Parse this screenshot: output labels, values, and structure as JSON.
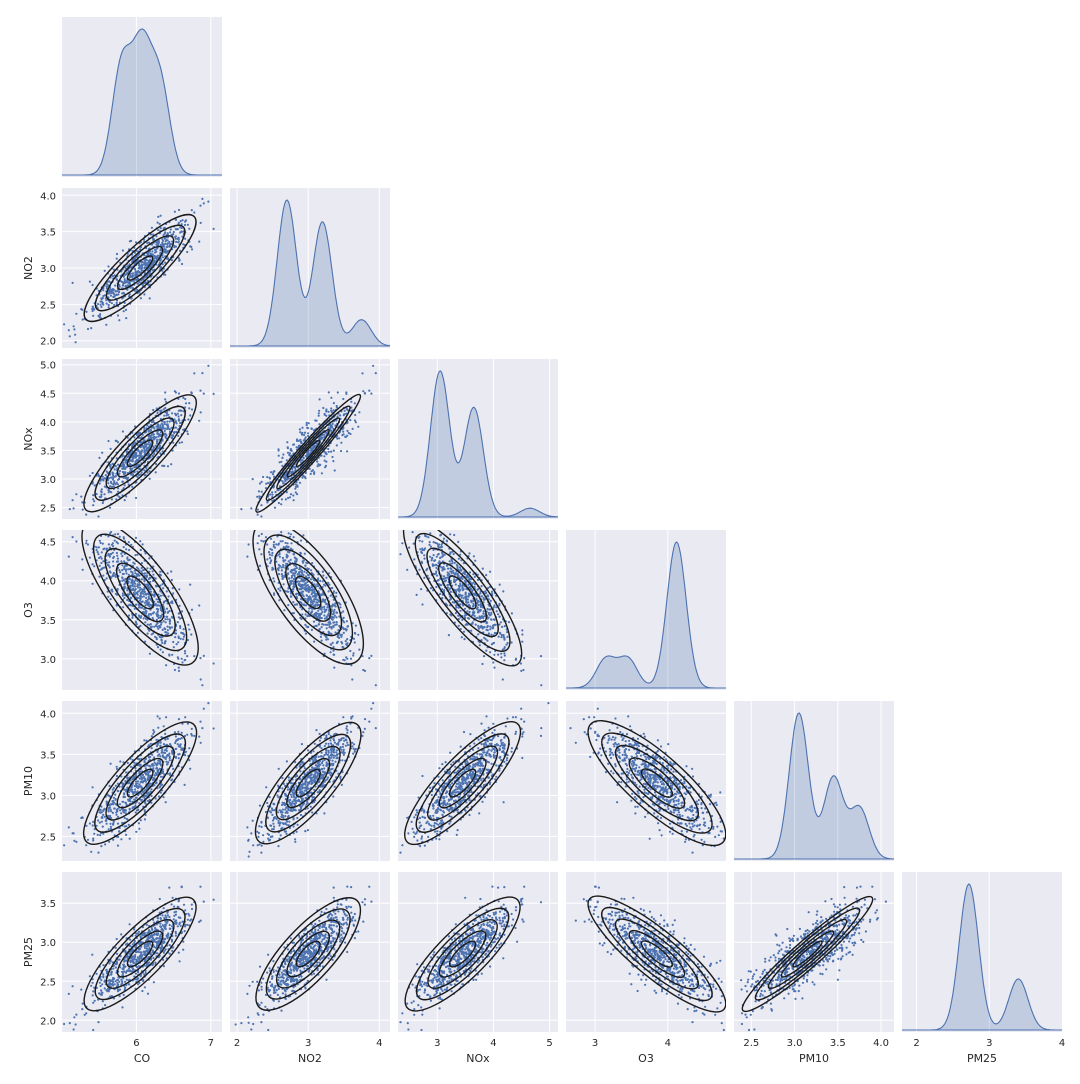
{
  "chart_data": {
    "type": "scatter",
    "plot_kind": "pairplot-corner",
    "diagonal": "kde",
    "lower": "scatter with kde contour overlay",
    "style": {
      "background": "#EAEAF2",
      "grid": true,
      "grid_color": "#FFFFFF",
      "marker_color": "#4C72B0",
      "contour_color": "#1A1A1A"
    },
    "variables": [
      "CO",
      "NO2",
      "NOx",
      "O3",
      "PM10",
      "PM25"
    ],
    "axes": {
      "CO": {
        "lim": [
          5.0,
          7.15
        ],
        "ticks": [
          6,
          7
        ],
        "tick_labels": [
          "6",
          "7"
        ]
      },
      "NO2": {
        "lim": [
          1.9,
          4.15
        ],
        "ticks": [
          2,
          3,
          4
        ],
        "tick_labels": [
          "2",
          "3",
          "4"
        ],
        "ylim": [
          1.9,
          4.1
        ],
        "yticks": [
          2.0,
          2.5,
          3.0,
          3.5,
          4.0
        ],
        "ytick_labels": [
          "2.0",
          "2.5",
          "3.0",
          "3.5",
          "4.0"
        ]
      },
      "NOx": {
        "lim": [
          2.3,
          5.15
        ],
        "ticks": [
          3,
          4,
          5
        ],
        "tick_labels": [
          "3",
          "4",
          "5"
        ],
        "ylim": [
          2.3,
          5.1
        ],
        "yticks": [
          2.5,
          3.0,
          3.5,
          4.0,
          4.5,
          5.0
        ],
        "ytick_labels": [
          "2.5",
          "3.0",
          "3.5",
          "4.0",
          "4.5",
          "5.0"
        ]
      },
      "O3": {
        "lim": [
          2.6,
          4.8
        ],
        "ticks": [
          3,
          4
        ],
        "tick_labels": [
          "3",
          "4"
        ],
        "ylim": [
          2.6,
          4.65
        ],
        "yticks": [
          3.0,
          3.5,
          4.0,
          4.5
        ],
        "ytick_labels": [
          "3.0",
          "3.5",
          "4.0",
          "4.5"
        ]
      },
      "PM10": {
        "lim": [
          2.3,
          4.15
        ],
        "ticks": [
          2.5,
          3.0,
          3.5,
          4.0
        ],
        "tick_labels": [
          "2.5",
          "3.0",
          "3.5",
          "4.0"
        ],
        "ylim": [
          2.2,
          4.15
        ],
        "yticks": [
          2.5,
          3.0,
          3.5,
          4.0
        ],
        "ytick_labels": [
          "2.5",
          "3.0",
          "3.5",
          "4.0"
        ]
      },
      "PM25": {
        "lim": [
          1.8,
          4.0
        ],
        "ticks": [
          2,
          3,
          4
        ],
        "tick_labels": [
          "2",
          "3",
          "4"
        ],
        "ylim": [
          1.85,
          3.9
        ],
        "yticks": [
          2.0,
          2.5,
          3.0,
          3.5
        ],
        "ytick_labels": [
          "2.0",
          "2.5",
          "3.0",
          "3.5"
        ]
      }
    },
    "xlabels": [
      "CO",
      "NO2",
      "NOx",
      "O3",
      "PM10",
      "PM25"
    ],
    "ylabels": [
      "",
      "NO2",
      "NOx",
      "O3",
      "PM10",
      "PM25"
    ],
    "kde_peaks": {
      "CO": [
        [
          5.8,
          0.9
        ],
        [
          6.07,
          1.0
        ],
        [
          6.32,
          0.75
        ]
      ],
      "NO2": [
        [
          2.7,
          1.0
        ],
        [
          3.2,
          0.85
        ],
        [
          3.75,
          0.18
        ]
      ],
      "NOx": [
        [
          3.05,
          1.0
        ],
        [
          3.65,
          0.75
        ],
        [
          4.65,
          0.06
        ]
      ],
      "O3": [
        [
          3.15,
          0.2
        ],
        [
          3.45,
          0.2
        ],
        [
          4.12,
          1.0
        ]
      ],
      "PM10": [
        [
          3.05,
          1.0
        ],
        [
          3.45,
          0.56
        ],
        [
          3.75,
          0.35
        ]
      ],
      "PM25": [
        [
          2.72,
          1.0
        ],
        [
          3.4,
          0.35
        ]
      ]
    },
    "correlations": {
      "NO2-CO": 0.85,
      "NOx-CO": 0.85,
      "NOx-NO2": 0.97,
      "O3-CO": -0.75,
      "O3-NO2": -0.7,
      "O3-NOx": -0.82,
      "PM10-CO": 0.8,
      "PM10-NO2": 0.78,
      "PM10-NOx": 0.82,
      "PM10-O3": -0.8,
      "PM25-CO": 0.8,
      "PM25-NO2": 0.75,
      "PM25-NOx": 0.8,
      "PM25-O3": -0.85,
      "PM25-PM10": 0.95
    },
    "n_points": 800
  }
}
